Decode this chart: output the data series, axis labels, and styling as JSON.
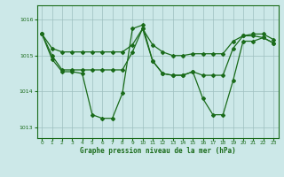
{
  "title": "Graphe pression niveau de la mer (hPa)",
  "background_color": "#cce8e8",
  "plot_bg_color": "#cce8e8",
  "line_color": "#1a6b1a",
  "marker_color": "#1a6b1a",
  "grid_color": "#9dbfbf",
  "ylim": [
    1012.7,
    1016.4
  ],
  "xlim": [
    -0.5,
    23.5
  ],
  "yticks": [
    1013,
    1014,
    1015,
    1016
  ],
  "xticks": [
    0,
    1,
    2,
    3,
    4,
    5,
    6,
    7,
    8,
    9,
    10,
    11,
    12,
    13,
    14,
    15,
    16,
    17,
    18,
    19,
    20,
    21,
    22,
    23
  ],
  "series1_x": [
    0,
    1,
    2,
    3,
    4,
    5,
    6,
    7,
    8,
    9,
    10,
    11,
    12,
    13,
    14,
    15,
    16,
    17,
    18,
    19,
    20,
    21,
    22,
    23
  ],
  "series1_y": [
    1015.6,
    1014.9,
    1014.55,
    1014.55,
    1014.5,
    1013.35,
    1013.25,
    1013.25,
    1013.95,
    1015.75,
    1015.85,
    1014.85,
    1014.5,
    1014.45,
    1014.45,
    1014.55,
    1013.8,
    1013.35,
    1013.35,
    1014.3,
    1015.4,
    1015.4,
    1015.5,
    1015.35
  ],
  "series2_x": [
    0,
    1,
    2,
    3,
    4,
    5,
    6,
    7,
    8,
    9,
    10,
    11,
    12,
    13,
    14,
    15,
    16,
    17,
    18,
    19,
    20,
    21,
    22,
    23
  ],
  "series2_y": [
    1015.6,
    1015.0,
    1014.6,
    1014.6,
    1014.6,
    1014.6,
    1014.6,
    1014.6,
    1014.6,
    1015.1,
    1015.75,
    1014.85,
    1014.5,
    1014.45,
    1014.45,
    1014.55,
    1014.45,
    1014.45,
    1014.45,
    1015.2,
    1015.55,
    1015.6,
    1015.6,
    1015.45
  ],
  "series3_x": [
    0,
    1,
    2,
    3,
    4,
    5,
    6,
    7,
    8,
    9,
    10,
    11,
    12,
    13,
    14,
    15,
    16,
    17,
    18,
    19,
    20,
    21,
    22,
    23
  ],
  "series3_y": [
    1015.6,
    1015.2,
    1015.1,
    1015.1,
    1015.1,
    1015.1,
    1015.1,
    1015.1,
    1015.1,
    1015.3,
    1015.75,
    1015.3,
    1015.1,
    1015.0,
    1015.0,
    1015.05,
    1015.05,
    1015.05,
    1015.05,
    1015.4,
    1015.55,
    1015.55,
    1015.5,
    1015.35
  ]
}
